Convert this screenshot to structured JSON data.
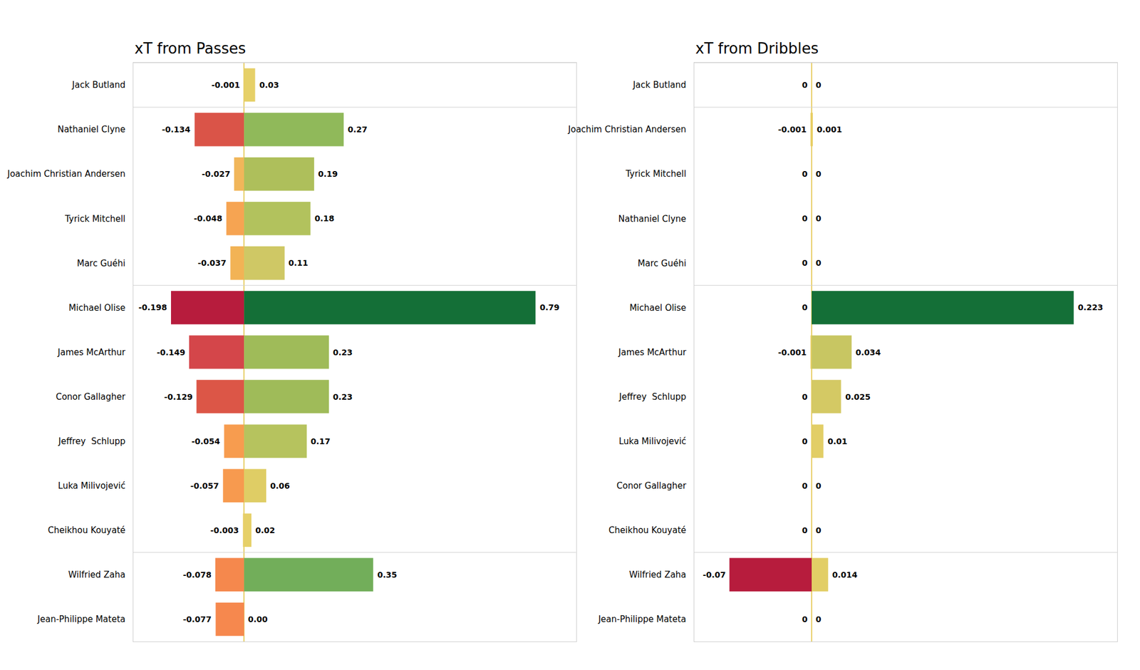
{
  "chart_data": [
    {
      "type": "bar",
      "title": "xT from Passes",
      "orientation": "horizontal",
      "stacked": true,
      "data_labels": true,
      "tick_labels": "y",
      "categories": [
        "Jack Butland",
        "Nathaniel Clyne",
        "Joachim Christian Andersen",
        "Tyrick Mitchell",
        "Marc Guéhi",
        "Michael Olise",
        "James McArthur",
        "Conor Gallagher",
        "Jeffrey  Schlupp",
        "Luka Milivojević",
        "Cheikhou Kouyaté",
        "Wilfried Zaha",
        "Jean-Philippe Mateta"
      ],
      "xlim": [
        -0.3,
        0.9
      ],
      "series": [
        {
          "values": [
            -0.001,
            -0.134,
            -0.027,
            -0.048,
            -0.037,
            -0.198,
            -0.149,
            -0.129,
            -0.054,
            -0.057,
            -0.003,
            -0.078,
            -0.077
          ],
          "value_labels": [
            "-0.001",
            "-0.134",
            "-0.027",
            "-0.048",
            "-0.037",
            "-0.198",
            "-0.149",
            "-0.129",
            "-0.054",
            "-0.057",
            "-0.003",
            "-0.078",
            "-0.077"
          ],
          "colors": [
            "#e9d06b",
            "#da5448",
            "#f1b65a",
            "#f6a452",
            "#f2b355",
            "#b71c3d",
            "#d4464a",
            "#dc5647",
            "#f79c4f",
            "#f79a4f",
            "#e8cf67",
            "#f5884d",
            "#f6884e"
          ]
        },
        {
          "values": [
            0.03,
            0.27,
            0.19,
            0.18,
            0.11,
            0.79,
            0.23,
            0.23,
            0.17,
            0.06,
            0.02,
            0.35,
            0.0
          ],
          "value_labels": [
            "0.03",
            "0.27",
            "0.19",
            "0.18",
            "0.11",
            "0.79",
            "0.23",
            "0.23",
            "0.17",
            "0.06",
            "0.02",
            "0.35",
            "0.00"
          ],
          "colors": [
            "#e6d068",
            "#90b95a",
            "#aebf5b",
            "#b2c25d",
            "#cfc865",
            "#146f37",
            "#9fbb59",
            "#9fbb59",
            "#b6c35e",
            "#dfcd65",
            "#e6d068",
            "#72ae5a",
            "#eed26b"
          ]
        }
      ]
    },
    {
      "type": "bar",
      "title": "xT from Dribbles",
      "orientation": "horizontal",
      "stacked": true,
      "data_labels": true,
      "tick_labels": "y",
      "categories": [
        "Jack Butland",
        "Joachim Christian Andersen",
        "Tyrick Mitchell",
        "Nathaniel Clyne",
        "Marc Guéhi",
        "Michael Olise",
        "James McArthur",
        "Jeffrey  Schlupp",
        "Luka Milivojević",
        "Conor Gallagher",
        "Cheikhou Kouyaté",
        "Wilfried Zaha",
        "Jean-Philippe Mateta"
      ],
      "xlim": [
        -0.1,
        0.26
      ],
      "series": [
        {
          "values": [
            0,
            -0.001,
            0,
            0,
            0,
            0,
            -0.001,
            0,
            0,
            0,
            0,
            -0.07,
            0
          ],
          "value_labels": [
            "0",
            "-0.001",
            "0",
            "0",
            "0",
            "0",
            "-0.001",
            "0",
            "0",
            "0",
            "0",
            "-0.07",
            "0"
          ],
          "colors": [
            "#e8cf67",
            "#e8cf67",
            "#e8cf67",
            "#e8cf67",
            "#e8cf67",
            "#e8cf67",
            "#e8cf67",
            "#e8cf67",
            "#e8cf67",
            "#e8cf67",
            "#e8cf67",
            "#b71c3d",
            "#e8cf67"
          ]
        },
        {
          "values": [
            0,
            0.001,
            0,
            0,
            0,
            0.223,
            0.034,
            0.025,
            0.01,
            0,
            0,
            0.014,
            0
          ],
          "value_labels": [
            "0",
            "0.001",
            "0",
            "0",
            "0",
            "0.223",
            "0.034",
            "0.025",
            "0.01",
            "0",
            "0",
            "0.014",
            "0"
          ],
          "colors": [
            "#e8cf67",
            "#e8cf67",
            "#e8cf67",
            "#e8cf67",
            "#e8cf67",
            "#146f37",
            "#c8c662",
            "#d4c964",
            "#e2ce66",
            "#e8cf67",
            "#e8cf67",
            "#e2ce66",
            "#e8cf67"
          ]
        }
      ]
    }
  ]
}
